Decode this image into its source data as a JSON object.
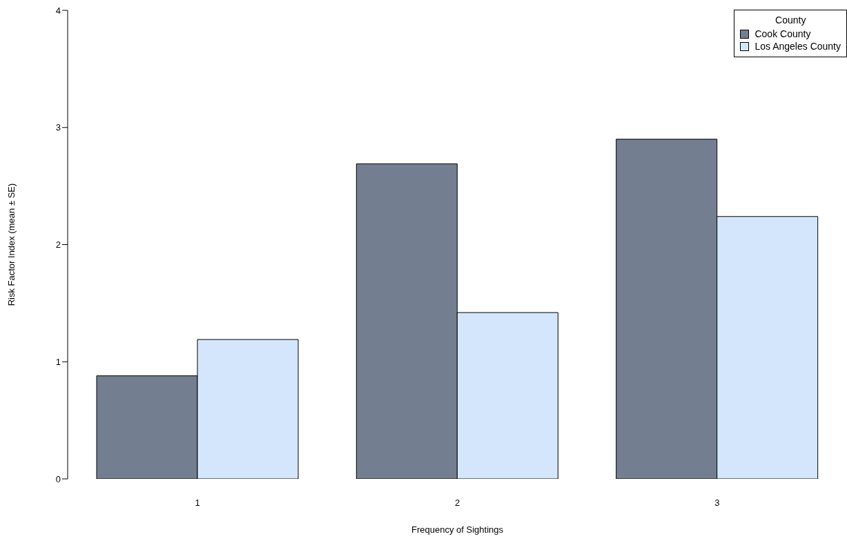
{
  "chart_data": {
    "type": "bar",
    "categories": [
      "1",
      "2",
      "3"
    ],
    "xlabel": "Frequency of Sightings",
    "ylabel": "Risk Factor Index (mean ± SE)",
    "legend_title": "County",
    "legend": "top right",
    "ylim": [
      0,
      4
    ],
    "yticks": [
      0,
      1,
      2,
      3,
      4
    ],
    "grid": false,
    "series": [
      {
        "name": "Cook County",
        "color": "#737f91",
        "values": [
          0.88,
          2.69,
          2.9
        ]
      },
      {
        "name": "Los Angeles County",
        "color": "#d4e6fc",
        "values": [
          1.19,
          1.42,
          2.24
        ]
      }
    ]
  }
}
